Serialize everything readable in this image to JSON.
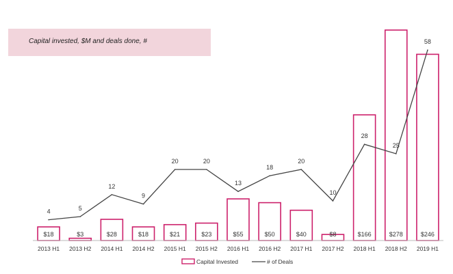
{
  "title": "Capital invested, $M and deals done, #",
  "colors": {
    "bar_stroke": "#cc1f6a",
    "line": "#444444",
    "title_bg": "#f2d5dc"
  },
  "chart_data": {
    "type": "bar",
    "title": "Capital invested, $M and deals done, #",
    "categories": [
      "2013 H1",
      "2013 H2",
      "2014 H1",
      "2014 H2",
      "2015 H1",
      "2015 H2",
      "2016 H1",
      "2016 H2",
      "2017 H1",
      "2017 H2",
      "2018 H1",
      "2018 H2",
      "2019 H1"
    ],
    "series": [
      {
        "name": "Capital Invested",
        "type": "bar",
        "values": [
          18,
          3,
          28,
          18,
          21,
          23,
          55,
          50,
          40,
          8,
          166,
          278,
          246
        ],
        "labels": [
          "$18",
          "$3",
          "$28",
          "$18",
          "$21",
          "$23",
          "$55",
          "$50",
          "$40",
          "$8",
          "$166",
          "$278",
          "$246"
        ]
      },
      {
        "name": "# of Deals",
        "type": "line",
        "values": [
          4,
          5,
          12,
          9,
          20,
          20,
          13,
          18,
          20,
          10,
          28,
          25,
          58
        ],
        "labels": [
          "4",
          "5",
          "12",
          "9",
          "20",
          "20",
          "13",
          "18",
          "20",
          "10",
          "28",
          "25",
          "58"
        ]
      }
    ],
    "legend_position": "bottom",
    "grid": false,
    "xlabel": "",
    "ylabel": ""
  }
}
